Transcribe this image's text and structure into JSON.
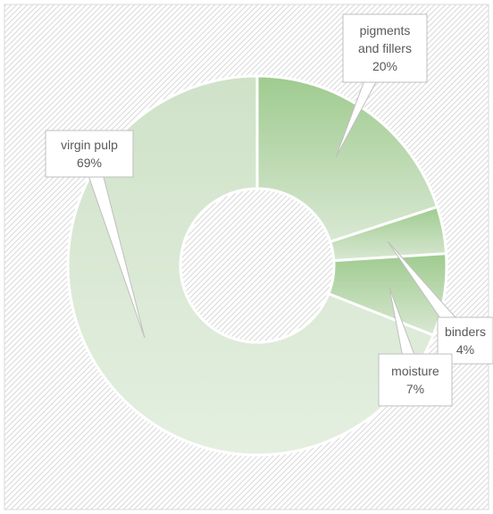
{
  "chart_data": {
    "type": "pie",
    "variant": "doughnut",
    "categories": [
      "pigments and fillers",
      "binders",
      "moisture",
      "virgin pulp"
    ],
    "values": [
      20,
      4,
      7,
      69
    ],
    "labels": [
      {
        "name_lines": [
          "pigments",
          "and fillers"
        ],
        "percent": "20%"
      },
      {
        "name_lines": [
          "binders"
        ],
        "percent": "4%"
      },
      {
        "name_lines": [
          "moisture"
        ],
        "percent": "7%"
      },
      {
        "name_lines": [
          "virgin pulp"
        ],
        "percent": "69%"
      }
    ],
    "legend": "none",
    "background": "diagonal-hatch",
    "colors": {
      "slice_light": "#d9e8d3",
      "slice_dark": "#9fcb8f",
      "slice_border": "#ffffff",
      "callout_fill": "#ffffff",
      "callout_border": "#bfbfbf",
      "text": "#595959",
      "hatch_line": "#d9d9d9",
      "frame_border": "#d9d9d9"
    }
  }
}
